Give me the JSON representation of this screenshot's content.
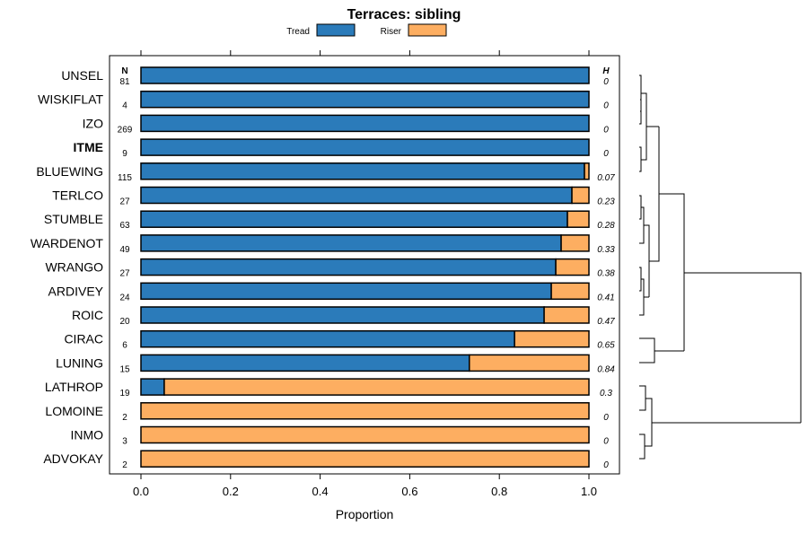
{
  "chart_data": {
    "type": "bar",
    "orientation": "horizontal",
    "stacked": true,
    "title": "Terraces: sibling",
    "xlabel": "Proportion",
    "ylabel": "",
    "xlim": [
      0,
      1
    ],
    "xticks": [
      "0.0",
      "0.2",
      "0.4",
      "0.6",
      "0.8",
      "1.0"
    ],
    "legend": {
      "placement": "top",
      "entries": [
        {
          "name": "Tread",
          "color": "#2b7bba"
        },
        {
          "name": "Riser",
          "color": "#fdae61"
        }
      ]
    },
    "n_header": "N",
    "h_header": "H",
    "highlighted": "ITME",
    "categories": [
      "UNSEL",
      "WISKIFLAT",
      "IZO",
      "ITME",
      "BLUEWING",
      "TERLCO",
      "STUMBLE",
      "WARDENOT",
      "WRANGO",
      "ARDIVEY",
      "ROIC",
      "CIRAC",
      "LUNING",
      "LATHROP",
      "LOMOINE",
      "INMO",
      "ADVOKAY"
    ],
    "N": [
      "81",
      "4",
      "269",
      "9",
      "115",
      "27",
      "63",
      "49",
      "27",
      "24",
      "20",
      "6",
      "15",
      "19",
      "2",
      "3",
      "2"
    ],
    "H": [
      "0",
      "0",
      "0",
      "0",
      "0.07",
      "0.23",
      "0.28",
      "0.33",
      "0.38",
      "0.41",
      "0.47",
      "0.65",
      "0.84",
      "0.3",
      "0",
      "0",
      "0"
    ],
    "series": [
      {
        "name": "Tread",
        "values": [
          1,
          1,
          1,
          1,
          0.99,
          0.962,
          0.952,
          0.938,
          0.926,
          0.916,
          0.9,
          0.834,
          0.733,
          0.052,
          0,
          0,
          0
        ]
      },
      {
        "name": "Riser",
        "values": [
          0,
          0,
          0,
          0,
          0.01,
          0.038,
          0.048,
          0.062,
          0.074,
          0.084,
          0.1,
          0.166,
          0.267,
          0.948,
          1,
          1,
          1
        ]
      }
    ]
  }
}
